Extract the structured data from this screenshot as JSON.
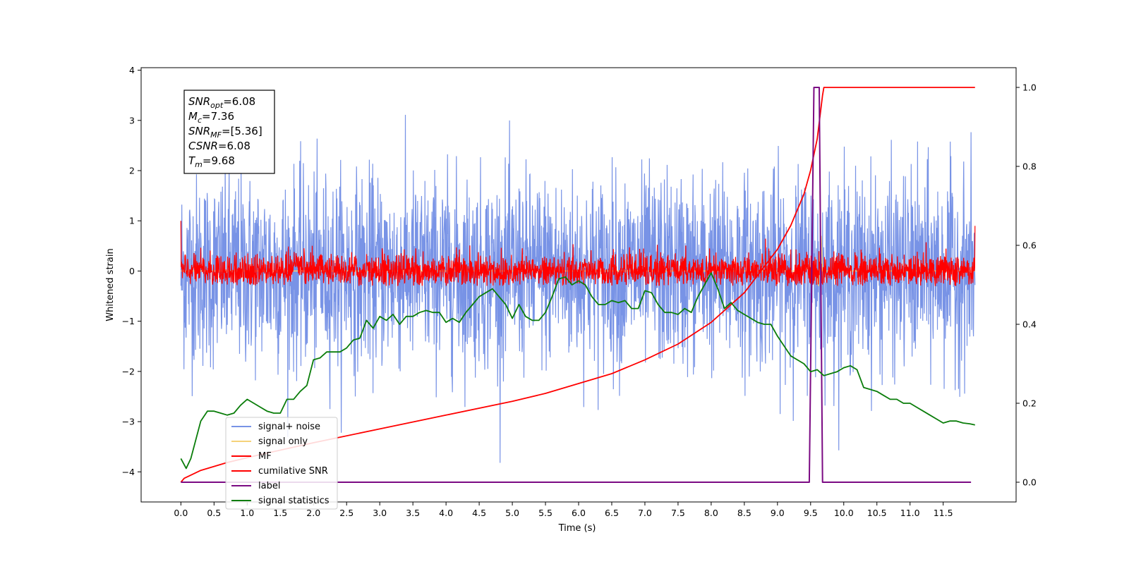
{
  "chart_data": {
    "type": "line",
    "xlabel": "Time (s)",
    "ylabel": "Whitened strain",
    "xlim": [
      -0.6,
      12.6
    ],
    "ylim": [
      -4.6,
      4.05
    ],
    "y2lim": [
      -0.05,
      1.05
    ],
    "x_ticks": [
      "0.0",
      "0.5",
      "1.0",
      "1.5",
      "2.0",
      "2.5",
      "3.0",
      "3.5",
      "4.0",
      "4.5",
      "5.0",
      "5.5",
      "6.0",
      "6.5",
      "7.0",
      "7.5",
      "8.0",
      "8.5",
      "9.0",
      "9.5",
      "10.0",
      "10.5",
      "11.0",
      "11.5"
    ],
    "y_ticks": [
      "4",
      "3",
      "2",
      "1",
      "0",
      "−1",
      "−2",
      "−3",
      "−4"
    ],
    "y2_ticks": [
      "1.0",
      "0.8",
      "0.6",
      "0.4",
      "0.2",
      "0.0"
    ],
    "info_box": {
      "snr_opt": {
        "symbol": "SNR",
        "sub": "opt",
        "value": "=6.08"
      },
      "mc": {
        "symbol": "M",
        "sub": "c",
        "value": "=7.36"
      },
      "snr_mf": {
        "symbol": "SNR",
        "sub": "MF",
        "value": "=[5.36]"
      },
      "csnr": {
        "symbol": "CSNR",
        "sub": "",
        "value": "=6.08"
      },
      "tm": {
        "symbol": "T",
        "sub": "m",
        "value": "=9.68"
      }
    },
    "legend": {
      "placement": "lower-left",
      "entries": [
        {
          "label": "signal+ noise",
          "color": "#7893e6"
        },
        {
          "label": "signal only",
          "color": "#f5d27a"
        },
        {
          "label": "MF",
          "color": "#ff0000"
        },
        {
          "label": "cumilative SNR",
          "color": "#ff0000"
        },
        {
          "label": "label",
          "color": "#7b0a83"
        },
        {
          "label": "signal statistics",
          "color": "#0a7d0a"
        }
      ]
    },
    "series": [
      {
        "name": "signal+ noise",
        "axis": "left",
        "color": "#7893e6",
        "note_sampled": true,
        "x_range": [
          0.0,
          11.98
        ],
        "band_mean": 0.0,
        "band_std": 0.95,
        "band_min": -4.15,
        "band_max": 3.68
      },
      {
        "name": "signal only",
        "axis": "left",
        "color": "#f5d27a",
        "x": [
          0.0,
          9.4,
          9.55,
          9.62,
          9.66,
          9.68,
          11.98
        ],
        "y": [
          0.0,
          0.0,
          0.15,
          -0.3,
          0.7,
          0.0,
          0.0
        ]
      },
      {
        "name": "MF",
        "axis": "left",
        "color": "#ff0000",
        "x_range": [
          0.0,
          11.98
        ],
        "band_mean": 0.0,
        "band_std": 0.18,
        "band_min": -0.3,
        "band_max": 0.65,
        "edge_values": [
          1.0,
          0.9
        ]
      },
      {
        "name": "cumilative SNR",
        "axis": "right",
        "color": "#ff0000",
        "x": [
          0.0,
          0.05,
          0.3,
          0.7,
          1.2,
          2.0,
          3.0,
          4.0,
          5.0,
          5.5,
          6.0,
          6.5,
          7.0,
          7.5,
          8.0,
          8.5,
          9.0,
          9.2,
          9.4,
          9.5,
          9.6,
          9.68,
          9.7,
          11.98
        ],
        "y": [
          0.0,
          0.01,
          0.03,
          0.05,
          0.07,
          0.1,
          0.135,
          0.17,
          0.205,
          0.225,
          0.25,
          0.275,
          0.31,
          0.35,
          0.405,
          0.48,
          0.59,
          0.65,
          0.73,
          0.79,
          0.87,
          0.98,
          1.0,
          1.0
        ]
      },
      {
        "name": "label",
        "axis": "right",
        "color": "#7b0a83",
        "x": [
          0.0,
          9.48,
          9.55,
          9.63,
          9.68,
          11.92
        ],
        "y": [
          0.0,
          0.0,
          1.0,
          1.0,
          0.0,
          0.0
        ]
      },
      {
        "name": "signal statistics",
        "axis": "right",
        "color": "#0a7d0a",
        "x": [
          0.0,
          0.08,
          0.15,
          0.3,
          0.4,
          0.5,
          0.6,
          0.7,
          0.8,
          0.9,
          1.0,
          1.1,
          1.2,
          1.3,
          1.4,
          1.5,
          1.6,
          1.7,
          1.8,
          1.9,
          2.0,
          2.1,
          2.2,
          2.3,
          2.4,
          2.5,
          2.6,
          2.7,
          2.8,
          2.9,
          3.0,
          3.1,
          3.2,
          3.3,
          3.4,
          3.5,
          3.6,
          3.7,
          3.8,
          3.9,
          4.0,
          4.1,
          4.2,
          4.3,
          4.4,
          4.5,
          4.6,
          4.7,
          4.8,
          4.9,
          5.0,
          5.1,
          5.2,
          5.3,
          5.4,
          5.5,
          5.6,
          5.7,
          5.8,
          5.9,
          6.0,
          6.1,
          6.2,
          6.3,
          6.4,
          6.5,
          6.6,
          6.7,
          6.8,
          6.9,
          7.0,
          7.1,
          7.2,
          7.3,
          7.4,
          7.5,
          7.6,
          7.7,
          7.8,
          7.9,
          8.0,
          8.1,
          8.2,
          8.3,
          8.4,
          8.5,
          8.6,
          8.7,
          8.8,
          8.9,
          9.0,
          9.1,
          9.2,
          9.3,
          9.4,
          9.5,
          9.6,
          9.7,
          9.8,
          9.9,
          10.0,
          10.1,
          10.2,
          10.3,
          10.4,
          10.5,
          10.6,
          10.7,
          10.8,
          10.9,
          11.0,
          11.1,
          11.2,
          11.3,
          11.4,
          11.5,
          11.6,
          11.7,
          11.8,
          11.9,
          11.98
        ],
        "y": [
          0.06,
          0.035,
          0.06,
          0.155,
          0.18,
          0.18,
          0.175,
          0.17,
          0.175,
          0.195,
          0.21,
          0.2,
          0.19,
          0.18,
          0.175,
          0.175,
          0.21,
          0.21,
          0.23,
          0.245,
          0.31,
          0.315,
          0.33,
          0.33,
          0.33,
          0.34,
          0.36,
          0.365,
          0.41,
          0.39,
          0.42,
          0.41,
          0.425,
          0.4,
          0.42,
          0.42,
          0.43,
          0.435,
          0.43,
          0.43,
          0.405,
          0.415,
          0.405,
          0.43,
          0.45,
          0.47,
          0.48,
          0.49,
          0.47,
          0.45,
          0.415,
          0.45,
          0.42,
          0.41,
          0.41,
          0.43,
          0.47,
          0.515,
          0.52,
          0.5,
          0.51,
          0.5,
          0.47,
          0.45,
          0.45,
          0.46,
          0.455,
          0.46,
          0.44,
          0.44,
          0.485,
          0.48,
          0.45,
          0.43,
          0.43,
          0.425,
          0.44,
          0.43,
          0.47,
          0.5,
          0.53,
          0.49,
          0.44,
          0.455,
          0.435,
          0.425,
          0.415,
          0.405,
          0.4,
          0.4,
          0.37,
          0.345,
          0.32,
          0.31,
          0.3,
          0.28,
          0.285,
          0.27,
          0.275,
          0.28,
          0.29,
          0.295,
          0.285,
          0.24,
          0.235,
          0.23,
          0.22,
          0.21,
          0.21,
          0.2,
          0.2,
          0.19,
          0.18,
          0.17,
          0.16,
          0.15,
          0.155,
          0.155,
          0.15,
          0.148,
          0.145
        ]
      }
    ]
  }
}
